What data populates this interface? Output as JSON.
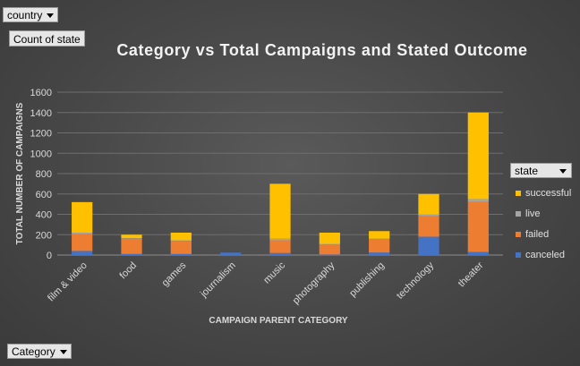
{
  "filters": {
    "country_label": "country",
    "values_field_label": "Count of state",
    "axis_field_label": "Category",
    "legend_field_label": "state"
  },
  "colors": {
    "successful": "#ffc000",
    "live": "#a5a5a5",
    "failed": "#ed7d31",
    "canceled": "#4472c4"
  },
  "chart_data": {
    "type": "bar",
    "stacked": true,
    "title": "Category vs Total Campaigns and Stated Outcome",
    "xlabel": "CAMPAIGN PARENT CATEGORY",
    "ylabel": "TOTAL NUMBER OF CAMPAIGNS",
    "ylim": [
      0,
      1600
    ],
    "yticks": [
      0,
      200,
      400,
      600,
      800,
      1000,
      1200,
      1400,
      1600
    ],
    "grid": true,
    "legend_position": "right",
    "categories": [
      "film & video",
      "food",
      "games",
      "journalism",
      "music",
      "photography",
      "publishing",
      "technology",
      "theater"
    ],
    "series": [
      {
        "name": "canceled",
        "values": [
          40,
          10,
          10,
          24,
          20,
          5,
          25,
          180,
          30
        ]
      },
      {
        "name": "failed",
        "values": [
          165,
          150,
          130,
          0,
          125,
          100,
          130,
          200,
          490
        ]
      },
      {
        "name": "live",
        "values": [
          15,
          5,
          5,
          0,
          15,
          5,
          5,
          20,
          30
        ]
      },
      {
        "name": "successful",
        "values": [
          300,
          35,
          75,
          0,
          540,
          110,
          75,
          200,
          850
        ]
      }
    ]
  }
}
